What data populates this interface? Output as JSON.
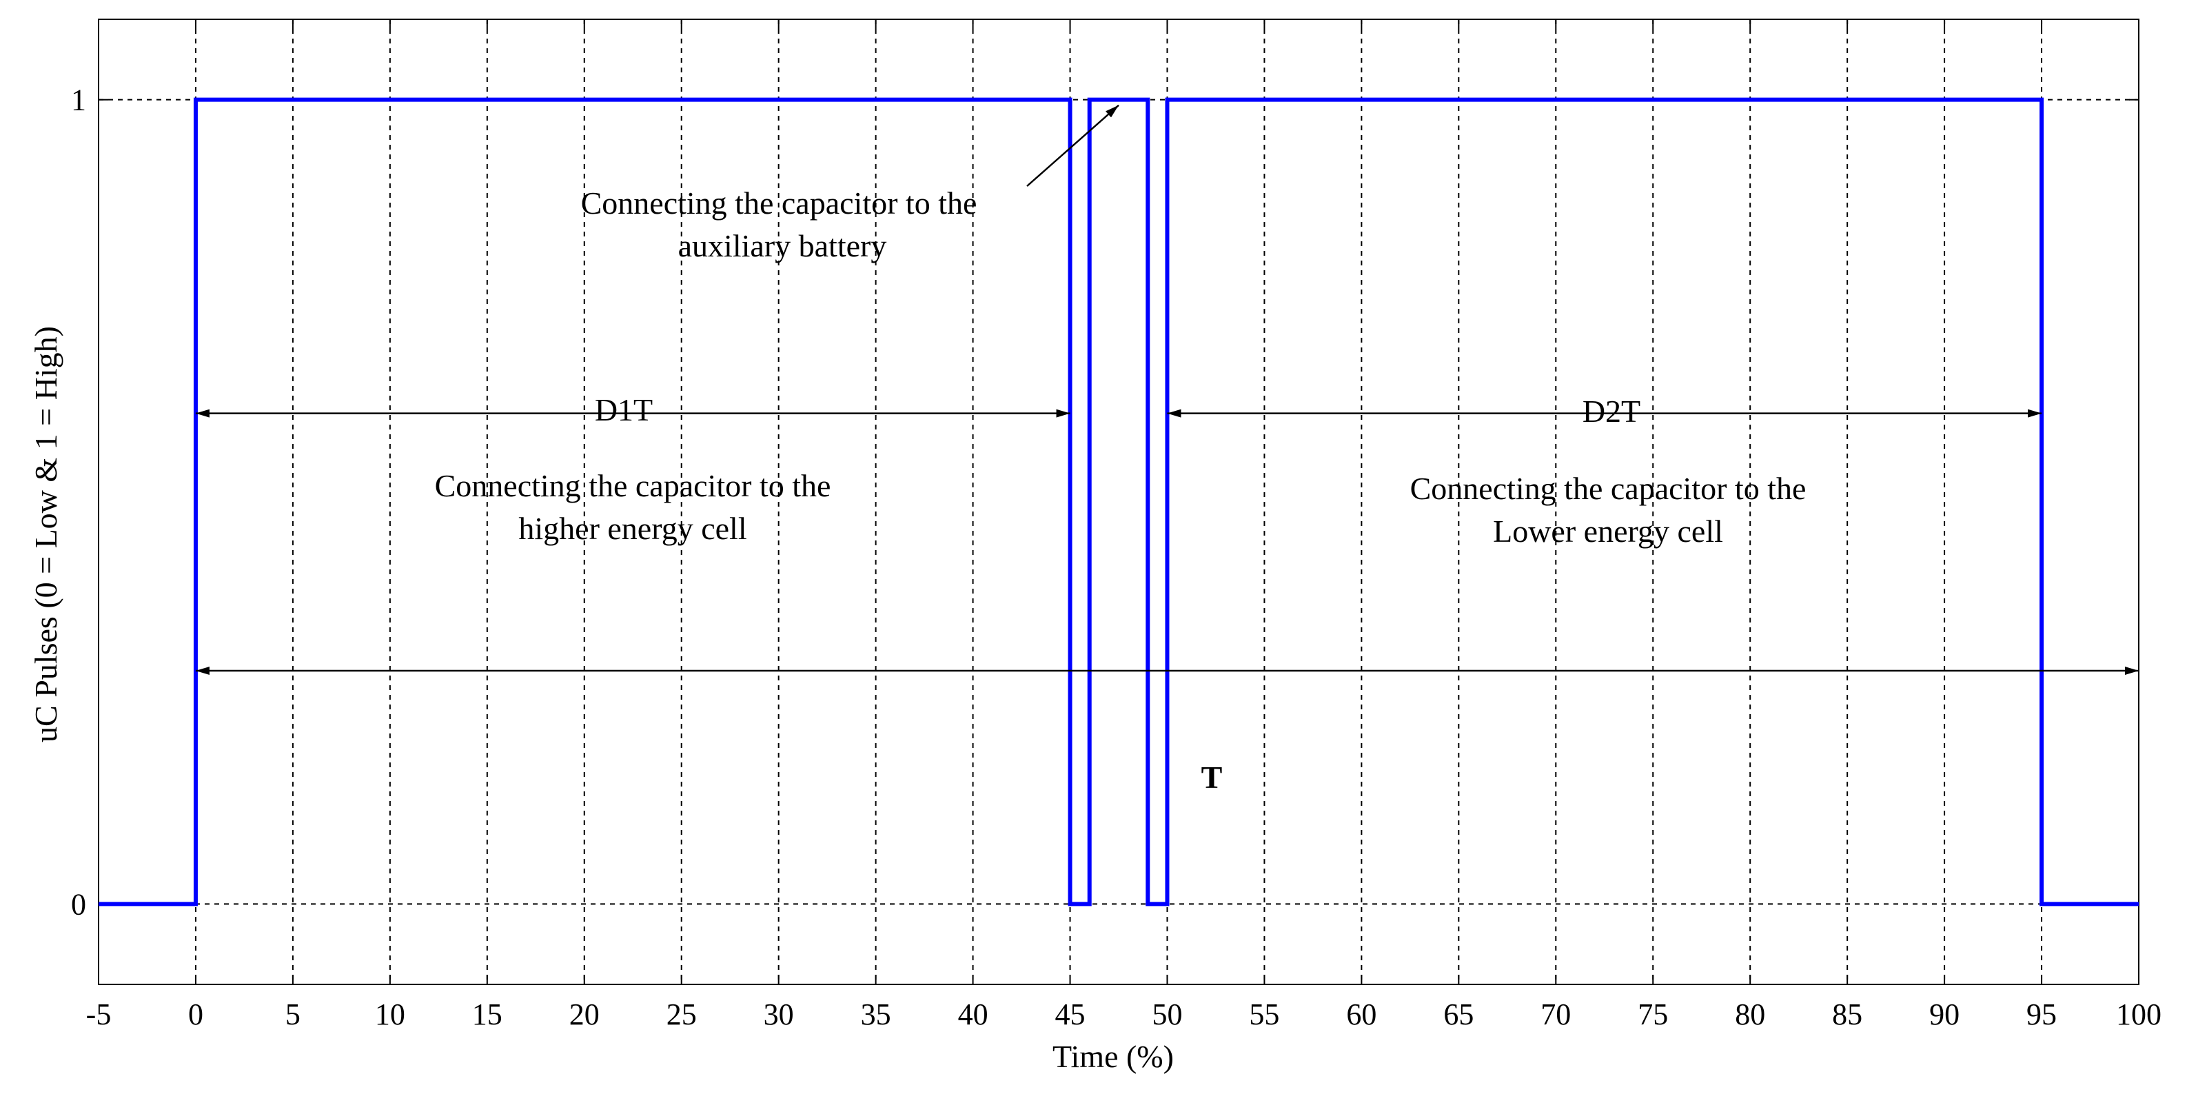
{
  "chart_data": {
    "type": "line",
    "title": "",
    "xlabel": "Time (%)",
    "ylabel": "uC Pulses (0 = Low & 1 = High)",
    "xlim": [
      -5,
      100
    ],
    "ylim": [
      -0.1,
      1.1
    ],
    "xticks": [
      -5,
      0,
      5,
      10,
      15,
      20,
      25,
      30,
      35,
      40,
      45,
      50,
      55,
      60,
      65,
      70,
      75,
      80,
      85,
      90,
      95,
      100
    ],
    "xtick_labels": [
      "-5",
      "0",
      "5",
      "10",
      "15",
      "20",
      "25",
      "30",
      "35",
      "40",
      "45",
      "50",
      "55",
      "60",
      "65",
      "70",
      "75",
      "80",
      "85",
      "90",
      "95",
      "100"
    ],
    "yticks": [
      0,
      1
    ],
    "ytick_labels": [
      "0",
      "1"
    ],
    "grid": "dashed vertical lines at x ticks; dashed horizontal line at y = 1",
    "line_color": "#0000ff",
    "series": [
      {
        "x": [
          -5,
          0,
          0,
          45,
          45,
          46,
          46,
          49,
          49,
          50,
          50,
          95,
          95,
          100
        ],
        "y": [
          0,
          0,
          1,
          1,
          0,
          0,
          1,
          1,
          0,
          0,
          1,
          1,
          0,
          0
        ]
      }
    ],
    "annotations": {
      "d1t": {
        "label": "D1T",
        "x_start": 0,
        "x_end": 45,
        "y": 0.61,
        "desc_line1": "Connecting the capacitor to the",
        "desc_line2": "higher energy cell"
      },
      "d2t": {
        "label": "D2T",
        "x_start": 50,
        "x_end": 95,
        "y": 0.61,
        "desc_line1": "Connecting the capacitor to the",
        "desc_line2": "Lower energy cell"
      },
      "period": {
        "label": "T",
        "x_start": 0,
        "x_end": 100,
        "y": 0.29
      },
      "aux": {
        "line1": "Connecting the capacitor to the",
        "line2": "auxiliary battery",
        "arrow_to_x": 47.5,
        "arrow_to_y": 1.0
      }
    }
  }
}
